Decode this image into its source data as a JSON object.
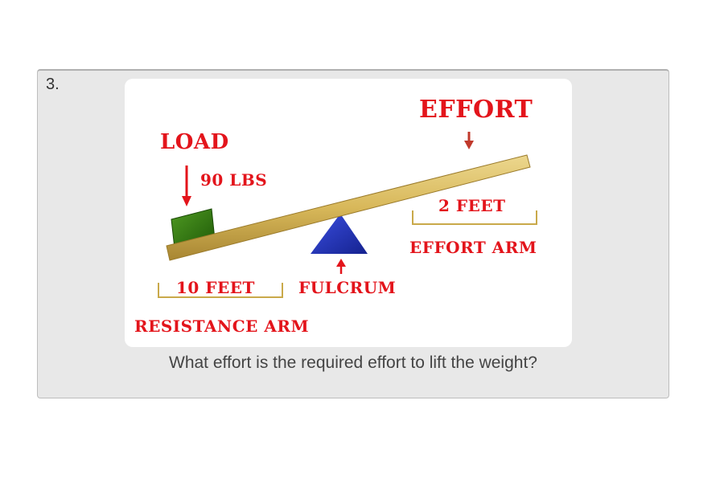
{
  "question": {
    "number": "3.",
    "text": "What effort is the required effort to lift the weight?"
  },
  "diagram": {
    "labels": {
      "load": "LOAD",
      "load_weight": "90 LBS",
      "effort": "EFFORT",
      "effort_distance": "2 FEET",
      "effort_arm": "EFFORT ARM",
      "resistance_distance": "10 FEET",
      "fulcrum": "FULCRUM",
      "resistance_arm": "RESISTANCE ARM"
    },
    "colors": {
      "label_red": "#e3141b",
      "lever_wood": "#d8b85a",
      "load_block": "#2f7a12",
      "fulcrum_blue": "#1f2fb8",
      "bracket": "#c9a94a"
    }
  }
}
